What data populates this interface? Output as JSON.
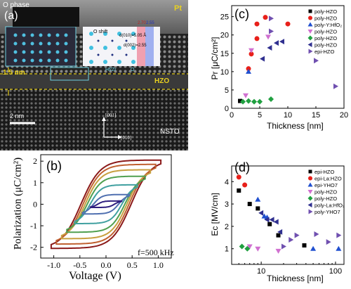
{
  "panel_a": {
    "letter": "(a)",
    "o_phase": "O phase",
    "pt": "Pt",
    "hzo": "HZO",
    "thickness": "1.5 nm",
    "scale": "2 nm",
    "substrate": "NSTO",
    "dir_001": "[001]",
    "dir_010": "[010]",
    "o_shift": "O shift",
    "d010": "d(010)=5.05 Å",
    "d002": "d(002)=2.55",
    "ratio_1": "2.70",
    "ratio_2": "2.55",
    "legend_hf": "Hf/Zr",
    "legend_o": "O"
  },
  "chart_data": [
    {
      "panel": "(b)",
      "type": "line",
      "xlabel": "Voltage (V)",
      "ylabel": "Polarization (μC/cm²)",
      "xlim": [
        -1.25,
        1.25
      ],
      "ylim": [
        -2.5,
        2.3
      ],
      "xticks": [
        "-1.0",
        "-0.5",
        "0.0",
        "0.5",
        "1.0"
      ],
      "yticks": [
        "-2",
        "-1",
        "0",
        "1",
        "2"
      ],
      "annotation": "f=500 kHz",
      "loops": [
        {
          "vmax": 1.05,
          "pmax": 2.05,
          "ec": 0.6,
          "color": "#8b1a1a"
        },
        {
          "vmax": 0.95,
          "pmax": 1.85,
          "ec": 0.55,
          "color": "#c06030"
        },
        {
          "vmax": 0.85,
          "pmax": 1.6,
          "ec": 0.5,
          "color": "#c8a040"
        },
        {
          "vmax": 0.75,
          "pmax": 1.3,
          "ec": 0.45,
          "color": "#50a050"
        },
        {
          "vmax": 0.6,
          "pmax": 0.9,
          "ec": 0.38,
          "color": "#40a0a0"
        },
        {
          "vmax": 0.45,
          "pmax": 0.45,
          "ec": 0.3,
          "color": "#5070b0"
        },
        {
          "vmax": 0.3,
          "pmax": 0.15,
          "ec": 0.2,
          "color": "#302080"
        }
      ]
    },
    {
      "panel": "(c)",
      "type": "scatter",
      "xlabel": "Thickness [nm]",
      "ylabel": "Pr [μC/cm²]",
      "xlim": [
        0,
        20
      ],
      "ylim": [
        0,
        28
      ],
      "xticks": [
        0,
        5,
        10,
        15,
        20
      ],
      "yticks": [
        0,
        5,
        10,
        15,
        20,
        25
      ],
      "legend_position": "top-right",
      "series": [
        {
          "name": "poly-HZO",
          "marker": "square",
          "color": "#000000",
          "points": [
            [
              1.5,
              2.0
            ]
          ]
        },
        {
          "name": "poly-HZO",
          "marker": "circle",
          "color": "#e8201a",
          "points": [
            [
              3.0,
              10.8
            ],
            [
              3.5,
              14.8
            ],
            [
              4.5,
              19.0
            ],
            [
              4.5,
              23.0
            ],
            [
              6.0,
              24.8
            ],
            [
              10.0,
              23.0
            ]
          ]
        },
        {
          "name": "poly-Y:HfO₂",
          "marker": "triangle-up",
          "color": "#2050d0",
          "points": [
            [
              3.0,
              10.0
            ]
          ]
        },
        {
          "name": "poly-HZO",
          "marker": "triangle-down",
          "color": "#d070d0",
          "points": [
            [
              2.5,
              3.5
            ],
            [
              3.5,
              15.8
            ],
            [
              6.5,
              19.5
            ]
          ]
        },
        {
          "name": "poly-HZO",
          "marker": "diamond",
          "color": "#20a040",
          "points": [
            [
              2.0,
              1.8
            ],
            [
              3.0,
              2.0
            ],
            [
              4.0,
              1.8
            ],
            [
              5.0,
              1.8
            ],
            [
              7.0,
              2.5
            ]
          ]
        },
        {
          "name": "poly-HZO",
          "marker": "triangle-left",
          "color": "#303090",
          "points": [
            [
              5.5,
              13.5
            ],
            [
              6.8,
              16.5
            ],
            [
              8.0,
              17.8
            ],
            [
              9.0,
              18.2
            ]
          ]
        },
        {
          "name": "epi-HZO",
          "marker": "triangle-right",
          "color": "#7050b0",
          "points": [
            [
              7.0,
              21.0
            ],
            [
              7.0,
              24.5
            ],
            [
              15.0,
              13.0
            ],
            [
              18.5,
              6.0
            ]
          ]
        }
      ]
    },
    {
      "panel": "(d)",
      "type": "scatter",
      "xlabel": "Thickness [nm]",
      "ylabel": "Ec [MV/cm]",
      "xscale": "log",
      "xlim": [
        4,
        130
      ],
      "ylim": [
        0.3,
        4.7
      ],
      "xticks": [
        "10",
        "100"
      ],
      "yticks": [
        "1",
        "2",
        "3",
        "4"
      ],
      "legend_position": "top-right",
      "series": [
        {
          "name": "epi-HZO",
          "marker": "square",
          "color": "#000000",
          "points": [
            [
              5,
              3.6
            ],
            [
              7,
              3.0
            ],
            [
              9,
              2.8
            ],
            [
              13,
              2.1
            ],
            [
              17,
              1.6
            ],
            [
              38,
              1.15
            ]
          ]
        },
        {
          "name": "epi-La:HZO",
          "marker": "circle",
          "color": "#e8201a",
          "points": [
            [
              5,
              4.2
            ],
            [
              6,
              3.85
            ]
          ]
        },
        {
          "name": "epi-YHO7",
          "marker": "triangle-up",
          "color": "#2050d0",
          "points": [
            [
              9,
              3.2
            ],
            [
              11,
              2.45
            ],
            [
              12,
              2.4
            ]
          ]
        },
        {
          "name": "poly-HZO",
          "marker": "triangle-down",
          "color": "#d070d0",
          "points": [
            [
              7,
              1.1
            ],
            [
              9,
              1.0
            ],
            [
              17,
              0.9
            ]
          ]
        },
        {
          "name": "poly-HZO",
          "marker": "diamond",
          "color": "#20a040",
          "points": [
            [
              5.5,
              1.1
            ],
            [
              6.5,
              1.0
            ]
          ]
        },
        {
          "name": "poly-La:HfO₂",
          "marker": "triangle-left",
          "color": "#303090",
          "points": [
            [
              10,
              2.6
            ],
            [
              12,
              2.3
            ],
            [
              14,
              2.3
            ],
            [
              16,
              2.2
            ],
            [
              18,
              1.75
            ]
          ]
        },
        {
          "name": "poly-YHO7",
          "marker": "triangle-right",
          "color": "#7050b0",
          "points": [
            [
              20,
              1.1
            ],
            [
              25,
              1.4
            ],
            [
              30,
              1.6
            ],
            [
              55,
              1.65
            ],
            [
              80,
              1.3
            ],
            [
              110,
              1.6
            ]
          ]
        }
      ],
      "extra_points": [
        {
          "marker": "triangle-up",
          "color": "#2050d0",
          "points": [
            [
              50,
              1.0
            ],
            [
              110,
              1.0
            ]
          ]
        }
      ]
    }
  ]
}
